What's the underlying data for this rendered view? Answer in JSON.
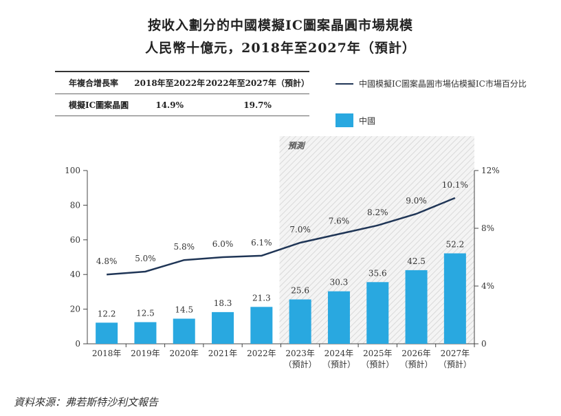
{
  "title": "按收入劃分的中國模擬IC圖案晶圓市場規模",
  "subtitle": "人民幣十億元，2018年至2027年（預計）",
  "cagr_table": {
    "header": [
      "年複合增長率",
      "2018年至2022年",
      "2022年至2027年（預計）"
    ],
    "rows": [
      [
        "模擬IC圖案晶圓",
        "14.9%",
        "19.7%"
      ]
    ]
  },
  "legend": {
    "line": "中國模擬IC圖案晶圓市場佔模擬IC市場百分比",
    "bar": "中國"
  },
  "forecast_label": "預測",
  "source": "資料來源：弗若斯特沙利文報告",
  "colors": {
    "bar": "#29a8e0",
    "line": "#1f3556",
    "forecast_hatch": "#d9d9d9"
  },
  "chart_data": {
    "type": "bar",
    "categories": [
      "2018年",
      "2019年",
      "2020年",
      "2021年",
      "2022年",
      "2023年",
      "2024年",
      "2025年",
      "2026年",
      "2027年"
    ],
    "category_notes": [
      "",
      "",
      "",
      "",
      "",
      "（預計）",
      "（預計）",
      "（預計）",
      "（預計）",
      "（預計）"
    ],
    "forecast_start_index": 5,
    "series": [
      {
        "name": "中國",
        "type": "bar",
        "axis": "left",
        "values": [
          12.2,
          12.5,
          14.5,
          18.3,
          21.3,
          25.6,
          30.3,
          35.6,
          42.5,
          52.2
        ],
        "labels": [
          "12.2",
          "12.5",
          "14.5",
          "18.3",
          "21.3",
          "25.6",
          "30.3",
          "35.6",
          "42.5",
          "52.2"
        ]
      },
      {
        "name": "中國模擬IC圖案晶圓市場佔模擬IC市場百分比",
        "type": "line",
        "axis": "right",
        "values": [
          4.8,
          5.0,
          5.8,
          6.0,
          6.1,
          7.0,
          7.6,
          8.2,
          9.0,
          10.1
        ],
        "labels": [
          "4.8%",
          "5.0%",
          "5.8%",
          "6.0%",
          "6.1%",
          "7.0%",
          "7.6%",
          "8.2%",
          "9.0%",
          "10.1%"
        ]
      }
    ],
    "left_axis": {
      "ylim": [
        0,
        100
      ],
      "ticks": [
        "0",
        "20",
        "40",
        "60",
        "80",
        "100"
      ]
    },
    "right_axis": {
      "ylim": [
        0,
        12
      ],
      "ticks": [
        "0",
        "4%",
        "8%",
        "12%"
      ]
    },
    "grid": false
  }
}
